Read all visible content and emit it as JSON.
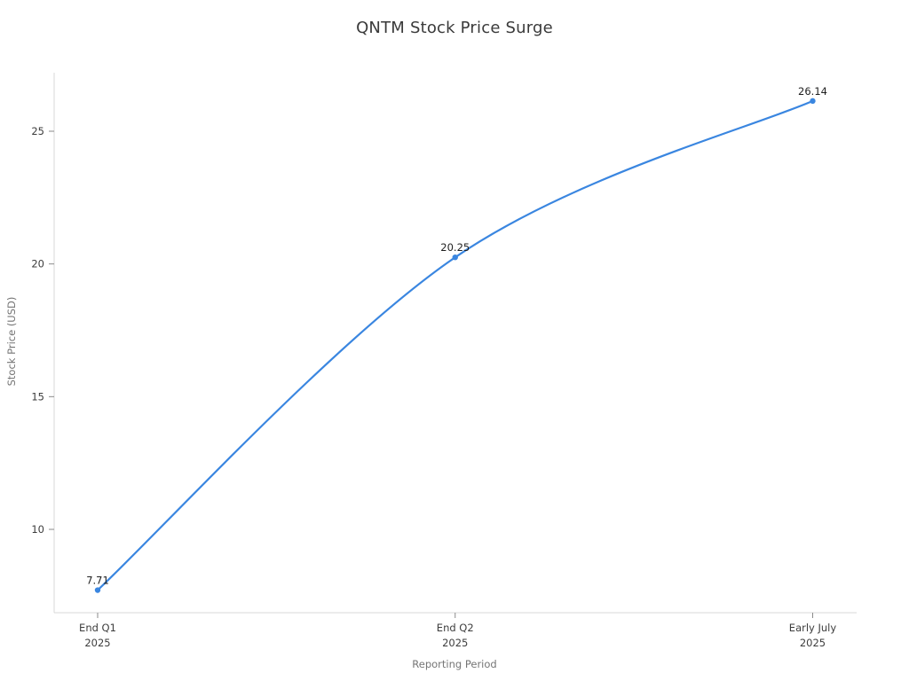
{
  "chart_data": {
    "type": "line",
    "title": "QNTM Stock Price Surge",
    "xlabel": "Reporting Period",
    "ylabel": "Stock Price (USD)",
    "categories": [
      [
        "End Q1",
        "2025"
      ],
      [
        "End Q2",
        "2025"
      ],
      [
        "Early July",
        "2025"
      ]
    ],
    "values": [
      7.71,
      20.25,
      26.14
    ],
    "point_labels": [
      "7.71",
      "20.25",
      "26.14"
    ],
    "y_ticks": [
      10,
      15,
      20,
      25
    ],
    "ylim": [
      6.86,
      27.2
    ],
    "grid": false,
    "legend": false,
    "line_style": "smooth",
    "marker": "circle",
    "colors": {
      "line": "#3a86e0",
      "spine": "#d8d8d8",
      "tick": "#8a8a8a",
      "tick_label": "#3d3d3d",
      "axis_title": "#757575",
      "title": "#3a3a3a",
      "point_label": "#1f1f1f"
    }
  }
}
